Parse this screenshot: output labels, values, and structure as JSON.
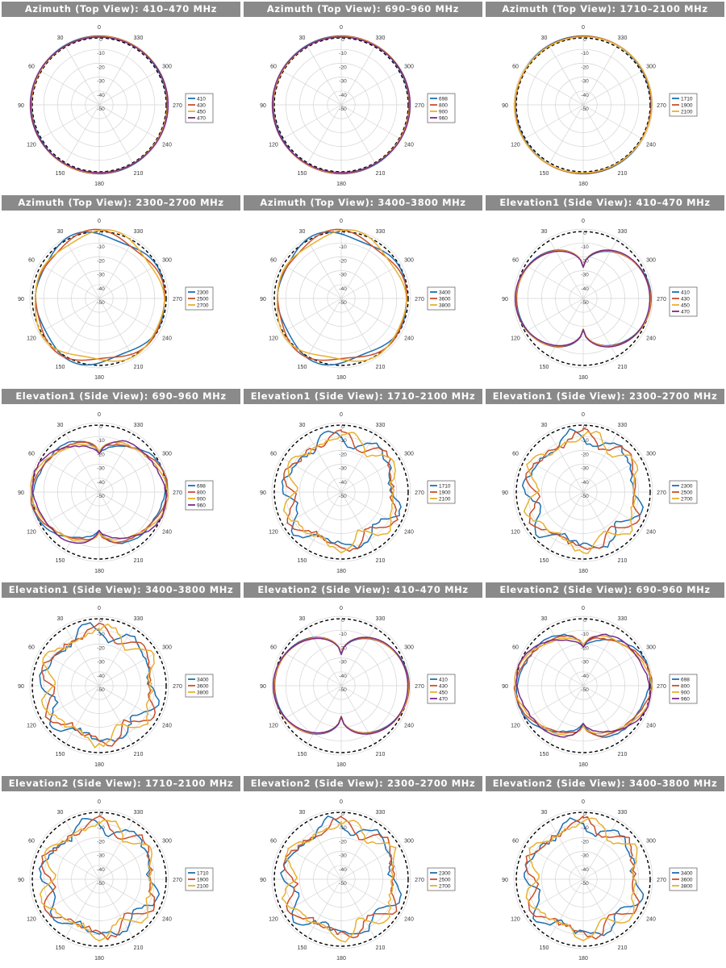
{
  "chart_data": [
    {
      "type": "polar-line",
      "title": "Azimuth (Top View): 410–470 MHz",
      "legend": [
        "410",
        "430",
        "450",
        "470"
      ],
      "pattern": "omni"
    },
    {
      "type": "polar-line",
      "title": "Azimuth (Top View): 690–960 MHz",
      "legend": [
        "698",
        "800",
        "900",
        "960"
      ],
      "pattern": "omni"
    },
    {
      "type": "polar-line",
      "title": "Azimuth (Top View): 1710–2100 MHz",
      "legend": [
        "1710",
        "1900",
        "2100"
      ],
      "pattern": "omni"
    },
    {
      "type": "polar-line",
      "title": "Azimuth (Top View): 2300–2700 MHz",
      "legend": [
        "2300",
        "2500",
        "2700"
      ],
      "pattern": "omni-ripple"
    },
    {
      "type": "polar-line",
      "title": "Azimuth (Top View): 3400–3800 MHz",
      "legend": [
        "3400",
        "3600",
        "3800"
      ],
      "pattern": "omni-ripple"
    },
    {
      "type": "polar-line",
      "title": "Elevation1 (Side View): 410–470 MHz",
      "legend": [
        "410",
        "430",
        "450",
        "470"
      ],
      "pattern": "elev-low"
    },
    {
      "type": "polar-line",
      "title": "Elevation1 (Side View): 690–960 MHz",
      "legend": [
        "698",
        "800",
        "900",
        "960"
      ],
      "pattern": "elev-mid"
    },
    {
      "type": "polar-line",
      "title": "Elevation1 (Side View): 1710–2100 MHz",
      "legend": [
        "1710",
        "1900",
        "2100"
      ],
      "pattern": "elev-high"
    },
    {
      "type": "polar-line",
      "title": "Elevation1 (Side View): 2300–2700 MHz",
      "legend": [
        "2300",
        "2500",
        "2700"
      ],
      "pattern": "elev-high"
    },
    {
      "type": "polar-line",
      "title": "Elevation1 (Side View): 3400–3800 MHz",
      "legend": [
        "3400",
        "3600",
        "3800"
      ],
      "pattern": "elev-high"
    },
    {
      "type": "polar-line",
      "title": "Elevation2 (Side View): 410–470 MHz",
      "legend": [
        "410",
        "430",
        "450",
        "470"
      ],
      "pattern": "elev-low"
    },
    {
      "type": "polar-line",
      "title": "Elevation2 (Side View): 690–960 MHz",
      "legend": [
        "698",
        "800",
        "900",
        "960"
      ],
      "pattern": "elev-mid"
    },
    {
      "type": "polar-line",
      "title": "Elevation2 (Side View): 1710–2100 MHz",
      "legend": [
        "1710",
        "1900",
        "2100"
      ],
      "pattern": "elev-high"
    },
    {
      "type": "polar-line",
      "title": "Elevation2 (Side View): 2300–2700 MHz",
      "legend": [
        "2300",
        "2500",
        "2700"
      ],
      "pattern": "elev-high"
    },
    {
      "type": "polar-line",
      "title": "Elevation2 (Side View): 3400–3800 MHz",
      "legend": [
        "3400",
        "3600",
        "3800"
      ],
      "pattern": "elev-high"
    }
  ],
  "angle_labels": [
    "0",
    "30",
    "60",
    "90",
    "120",
    "150",
    "180",
    "210",
    "240",
    "270",
    "300",
    "330"
  ],
  "radial_labels": [
    "0",
    "-10",
    "-20",
    "-30",
    "-40",
    "-50"
  ],
  "rlim": [
    -50,
    0
  ],
  "reference_circle": "dashed",
  "colors": {
    "series4": [
      "#1f6fb0",
      "#c8502a",
      "#e8b030",
      "#7a2a8a"
    ],
    "series3": [
      "#1f6fb0",
      "#c8502a",
      "#e8b030"
    ],
    "title_bg": "#8a8a8a",
    "title_text": "#ffffff"
  }
}
